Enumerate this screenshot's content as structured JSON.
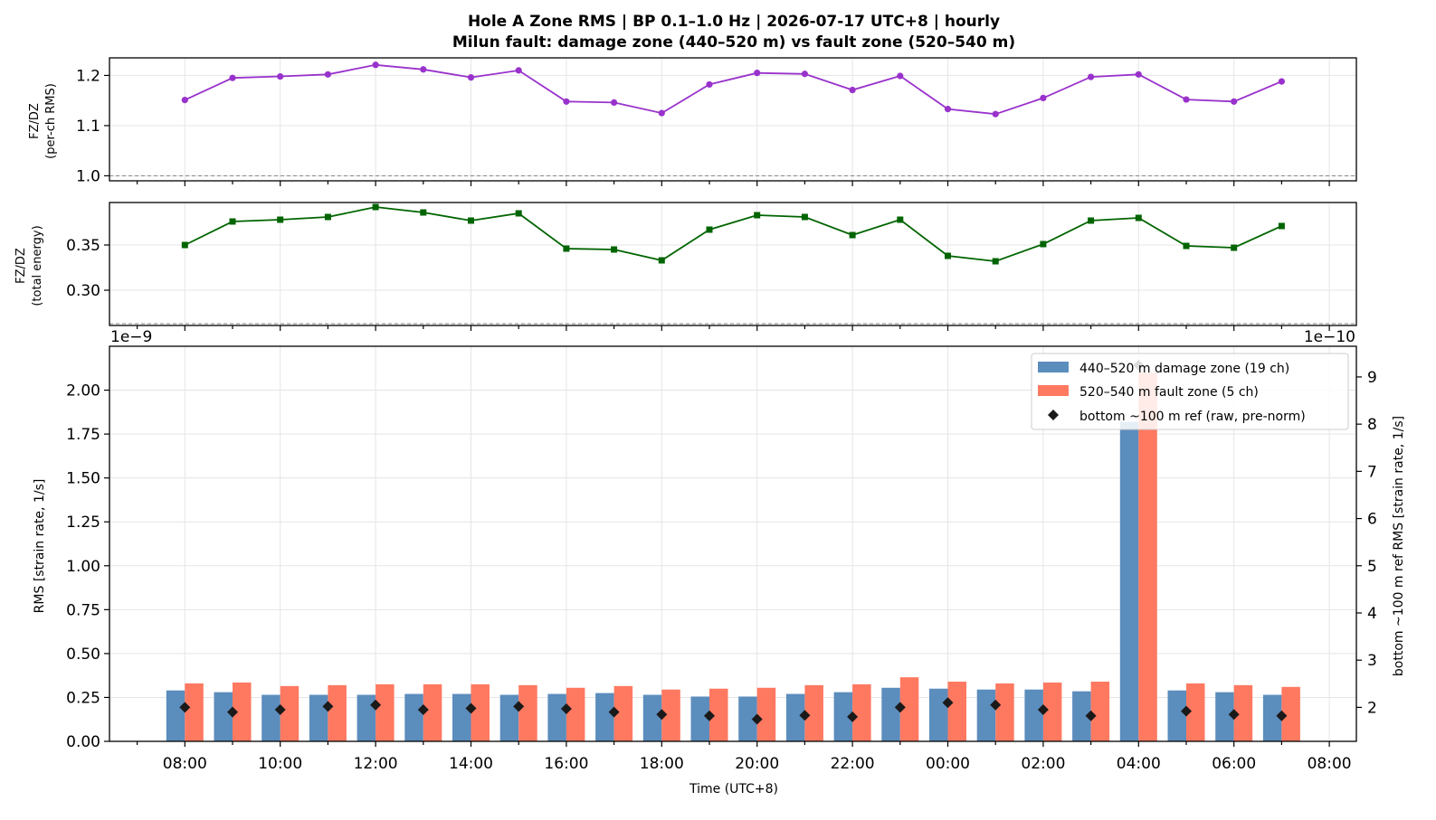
{
  "chart_data": [
    {
      "panel": "top",
      "type": "line",
      "title_line1": "Hole A Zone RMS  |  BP 0.1–1.0 Hz  |  2026-07-17 UTC+8  |  hourly",
      "title_line2": "Milun fault: damage zone (440–520 m) vs fault zone (520–540 m)",
      "ylabel_line1": "FZ/DZ",
      "ylabel_line2": "(per-ch RMS)",
      "ylim": [
        0.99,
        1.235
      ],
      "yticks": [
        1.0,
        1.1,
        1.2
      ],
      "ytick_labels": [
        "1.0",
        "1.1",
        "1.2"
      ],
      "reference_line": 1.0,
      "color": "#9932cc",
      "marker": "circle",
      "values": [
        1.151,
        1.195,
        1.198,
        1.202,
        1.221,
        1.212,
        1.196,
        1.21,
        1.148,
        1.146,
        1.125,
        1.182,
        1.205,
        1.203,
        1.171,
        1.199,
        1.133,
        1.123,
        1.155,
        1.197,
        1.202,
        1.152,
        1.148,
        1.188
      ]
    },
    {
      "panel": "middle",
      "type": "line",
      "ylabel_line1": "FZ/DZ",
      "ylabel_line2": "(total energy)",
      "ylim": [
        0.261,
        0.397
      ],
      "yticks": [
        0.3,
        0.35
      ],
      "ytick_labels": [
        "0.30",
        "0.35"
      ],
      "reference_line": 0.263,
      "color": "#006400",
      "marker": "square",
      "values": [
        0.35,
        0.376,
        0.378,
        0.381,
        0.392,
        0.386,
        0.377,
        0.385,
        0.346,
        0.345,
        0.333,
        0.367,
        0.383,
        0.381,
        0.361,
        0.378,
        0.338,
        0.332,
        0.351,
        0.377,
        0.38,
        0.349,
        0.347,
        0.371
      ]
    },
    {
      "panel": "bottom",
      "type": "bar",
      "ylabel": "RMS  [strain rate, 1/s]",
      "ylabel_right": "bottom ~100 m ref RMS  [strain rate, 1/s]",
      "xlabel": "Time (UTC+8)",
      "offset_left": "1e−9",
      "offset_right": "1e−10",
      "ylim": [
        0,
        2.25
      ],
      "yticks": [
        0,
        0.25,
        0.5,
        0.75,
        1.0,
        1.25,
        1.5,
        1.75,
        2.0
      ],
      "ytick_labels": [
        "0.00",
        "0.25",
        "0.50",
        "0.75",
        "1.00",
        "1.25",
        "1.50",
        "1.75",
        "2.00"
      ],
      "ylim_right": [
        1.28,
        9.65
      ],
      "yticks_right": [
        2,
        3,
        4,
        5,
        6,
        7,
        8,
        9
      ],
      "ytick_labels_right": [
        "2",
        "3",
        "4",
        "5",
        "6",
        "7",
        "8",
        "9"
      ],
      "categories": [
        "08:00",
        "09:00",
        "10:00",
        "11:00",
        "12:00",
        "13:00",
        "14:00",
        "15:00",
        "16:00",
        "17:00",
        "18:00",
        "19:00",
        "20:00",
        "21:00",
        "22:00",
        "23:00",
        "00:00",
        "01:00",
        "02:00",
        "03:00",
        "04:00",
        "05:00",
        "06:00",
        "07:00"
      ],
      "xtick_labels": [
        "08:00",
        "10:00",
        "12:00",
        "14:00",
        "16:00",
        "18:00",
        "20:00",
        "22:00",
        "00:00",
        "02:00",
        "04:00",
        "06:00",
        "08:00"
      ],
      "legend_position": "top-right",
      "series": [
        {
          "name": "440–520 m  damage zone (19 ch)",
          "color": "#5b8dbd",
          "values": [
            0.29,
            0.28,
            0.265,
            0.265,
            0.265,
            0.27,
            0.27,
            0.265,
            0.27,
            0.275,
            0.265,
            0.255,
            0.255,
            0.27,
            0.28,
            0.305,
            0.3,
            0.295,
            0.295,
            0.285,
            1.82,
            0.29,
            0.28,
            0.265
          ]
        },
        {
          "name": "520–540 m  fault zone (5 ch)",
          "color": "#ff7961",
          "values": [
            0.33,
            0.335,
            0.315,
            0.32,
            0.325,
            0.325,
            0.325,
            0.32,
            0.305,
            0.315,
            0.295,
            0.3,
            0.305,
            0.32,
            0.325,
            0.365,
            0.34,
            0.33,
            0.335,
            0.34,
            2.1,
            0.33,
            0.32,
            0.31
          ]
        },
        {
          "name": "bottom ~100 m ref (raw, pre-norm)",
          "color": "#1a1a1a",
          "marker": "diamond",
          "axis": "right",
          "values": [
            2.0,
            1.9,
            1.95,
            2.02,
            2.05,
            1.95,
            1.98,
            2.02,
            1.97,
            1.9,
            1.85,
            1.82,
            1.75,
            1.83,
            1.8,
            2.0,
            2.1,
            2.05,
            1.95,
            1.82,
            9.25,
            1.92,
            1.85,
            1.82
          ]
        }
      ]
    }
  ]
}
